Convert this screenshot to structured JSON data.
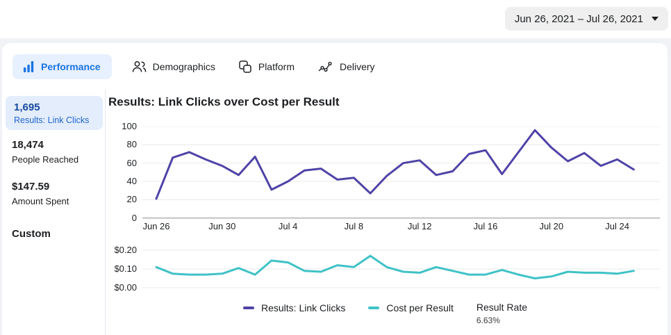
{
  "topbar": {
    "date_range": "Jun 26, 2021 – Jul 26, 2021"
  },
  "tabs": [
    {
      "label": "Performance",
      "icon": "bar-chart-icon",
      "selected": true
    },
    {
      "label": "Demographics",
      "icon": "people-icon",
      "selected": false
    },
    {
      "label": "Platform",
      "icon": "overlapping-squares-icon",
      "selected": false
    },
    {
      "label": "Delivery",
      "icon": "trend-dots-icon",
      "selected": false
    }
  ],
  "metrics": [
    {
      "value": "1,695",
      "label": "Results: Link Clicks",
      "selected": true
    },
    {
      "value": "18,474",
      "label": "People Reached",
      "selected": false
    },
    {
      "value": "$147.59",
      "label": "Amount Spent",
      "selected": false
    },
    {
      "value": "Custom",
      "label": "",
      "selected": false
    }
  ],
  "legend": {
    "items": [
      {
        "label": "Results: Link Clicks",
        "color": "#4e43a7"
      },
      {
        "label": "Cost per Result",
        "color": "#3fc2c7"
      }
    ],
    "result_rate": {
      "label": "Result Rate",
      "value": "6.63%"
    }
  },
  "chart_data": [
    {
      "type": "line",
      "title": "Results: Link Clicks over Cost per Result",
      "series_name": "Results: Link Clicks",
      "color": "#4e43a7",
      "grid": true,
      "legend_position": "bottom",
      "ylim": [
        0,
        100
      ],
      "y_ticks": [
        100,
        80,
        60,
        40,
        20,
        0
      ],
      "x_tick_labels": [
        "Jun 26",
        "Jun 30",
        "Jul 4",
        "Jul 8",
        "Jul 12",
        "Jul 16",
        "Jul 20",
        "Jul 24"
      ],
      "x_tick_indices": [
        0,
        4,
        8,
        12,
        16,
        20,
        24,
        28
      ],
      "x": [
        "Jun 26",
        "Jun 27",
        "Jun 28",
        "Jun 29",
        "Jun 30",
        "Jul 1",
        "Jul 2",
        "Jul 3",
        "Jul 4",
        "Jul 5",
        "Jul 6",
        "Jul 7",
        "Jul 8",
        "Jul 9",
        "Jul 10",
        "Jul 11",
        "Jul 12",
        "Jul 13",
        "Jul 14",
        "Jul 15",
        "Jul 16",
        "Jul 17",
        "Jul 18",
        "Jul 19",
        "Jul 20",
        "Jul 21",
        "Jul 22",
        "Jul 23",
        "Jul 24",
        "Jul 25"
      ],
      "values": [
        21,
        66,
        72,
        64,
        57,
        47,
        67,
        31,
        40,
        52,
        54,
        42,
        44,
        27,
        46,
        60,
        63,
        47,
        51,
        70,
        74,
        48,
        72,
        96,
        77,
        62,
        71,
        57,
        64,
        53
      ]
    },
    {
      "type": "line",
      "series_name": "Cost per Result",
      "color": "#3fc2c7",
      "grid": true,
      "ylim": [
        0,
        0.2
      ],
      "y_ticks": [
        0.2,
        0.1,
        0.0
      ],
      "y_tick_labels": [
        "$0.20",
        "$0.10",
        "$0.00"
      ],
      "x": [
        "Jun 26",
        "Jun 27",
        "Jun 28",
        "Jun 29",
        "Jun 30",
        "Jul 1",
        "Jul 2",
        "Jul 3",
        "Jul 4",
        "Jul 5",
        "Jul 6",
        "Jul 7",
        "Jul 8",
        "Jul 9",
        "Jul 10",
        "Jul 11",
        "Jul 12",
        "Jul 13",
        "Jul 14",
        "Jul 15",
        "Jul 16",
        "Jul 17",
        "Jul 18",
        "Jul 19",
        "Jul 20",
        "Jul 21",
        "Jul 22",
        "Jul 23",
        "Jul 24",
        "Jul 25"
      ],
      "values": [
        0.11,
        0.075,
        0.07,
        0.07,
        0.075,
        0.105,
        0.07,
        0.145,
        0.135,
        0.09,
        0.085,
        0.12,
        0.11,
        0.17,
        0.11,
        0.085,
        0.08,
        0.11,
        0.09,
        0.07,
        0.07,
        0.095,
        0.07,
        0.05,
        0.06,
        0.085,
        0.08,
        0.08,
        0.075,
        0.09
      ]
    }
  ]
}
